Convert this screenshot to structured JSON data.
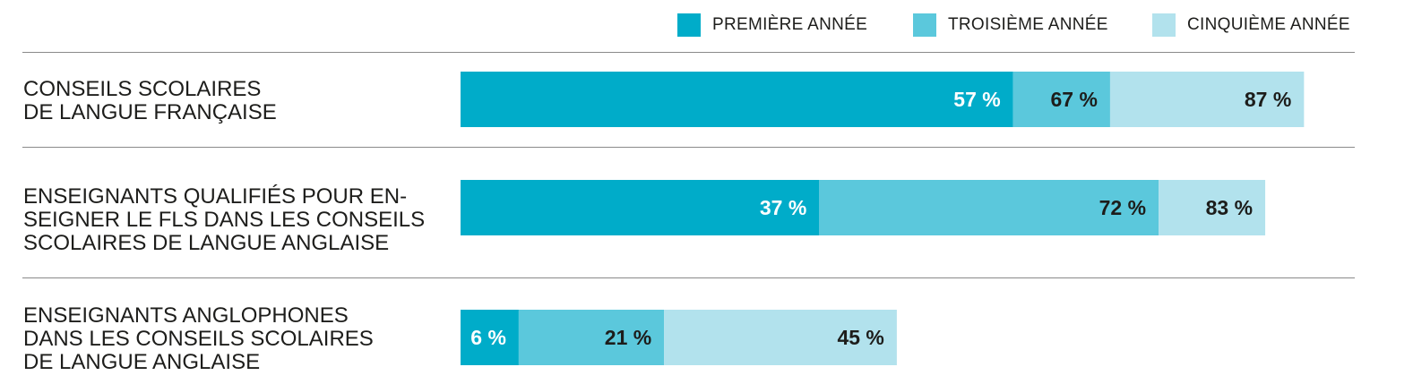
{
  "chart_data": {
    "type": "bar",
    "orientation": "horizontal",
    "stacked": true,
    "legend_position": "top-right",
    "grid": false,
    "categories": [
      "CONSEILS SCOLAIRES\nDE LANGUE FRANÇAISE",
      "ENSEIGNANTS QUALIFIÉS POUR EN-\nSEIGNER LE FLS DANS LES CONSEILS\nSCOLAIRES DE LANGUE ANGLAISE",
      "ENSEIGNANTS ANGLOPHONES\nDANS LES CONSEILS SCOLAIRES\nDE LANGUE ANGLAISE"
    ],
    "series": [
      {
        "name": "PREMIÈRE ANNÉE",
        "color": "#00acc9",
        "values": [
          57,
          37,
          6
        ],
        "labels": [
          "57 %",
          "37 %",
          "6 %"
        ]
      },
      {
        "name": "TROISIÈME ANNÉE",
        "color": "#5bc8dc",
        "values": [
          67,
          72,
          21
        ],
        "labels": [
          "67 %",
          "72 %",
          "21 %"
        ]
      },
      {
        "name": "CINQUIÈME ANNÉE",
        "color": "#b2e2ed",
        "values": [
          87,
          83,
          45
        ],
        "labels": [
          "87 %",
          "83 %",
          "45 %"
        ]
      }
    ],
    "value_scale_max": 100
  }
}
